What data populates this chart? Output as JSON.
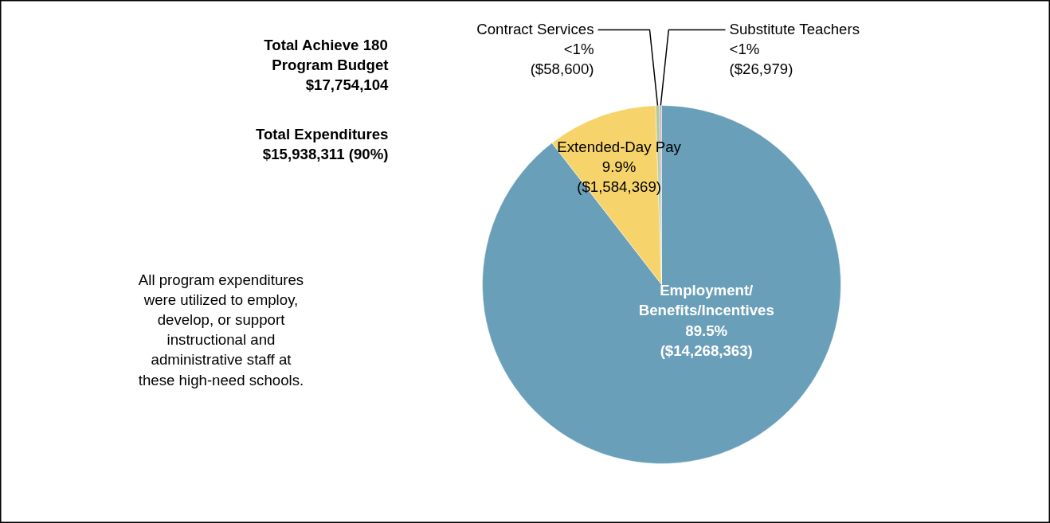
{
  "chart_data": {
    "type": "pie",
    "categories": [
      "Employment/\nBenefits/Incentives",
      "Extended-Day Pay",
      "Contract Services",
      "Substitute Teachers"
    ],
    "values": [
      14268363,
      1584369,
      58600,
      26979
    ],
    "value_labels": [
      "89.5%\n($14,268,363)",
      "9.9%\n($1,584,369)",
      "<1%\n($58,600)",
      "<1%\n($26,979)"
    ],
    "colors": [
      "#6a9fb9",
      "#f6d46b",
      "#b7c99a",
      "#b9a7d4"
    ],
    "annotations": [
      "Total Achieve 180\nProgram Budget\n$17,754,104",
      "Total Expenditures\n$15,938,311 (90%)",
      "All program expenditures\nwere utilized to employ,\ndevelop, or support\ninstructional and\nadministrative staff at\nthese high-need schools."
    ],
    "legend": false
  }
}
